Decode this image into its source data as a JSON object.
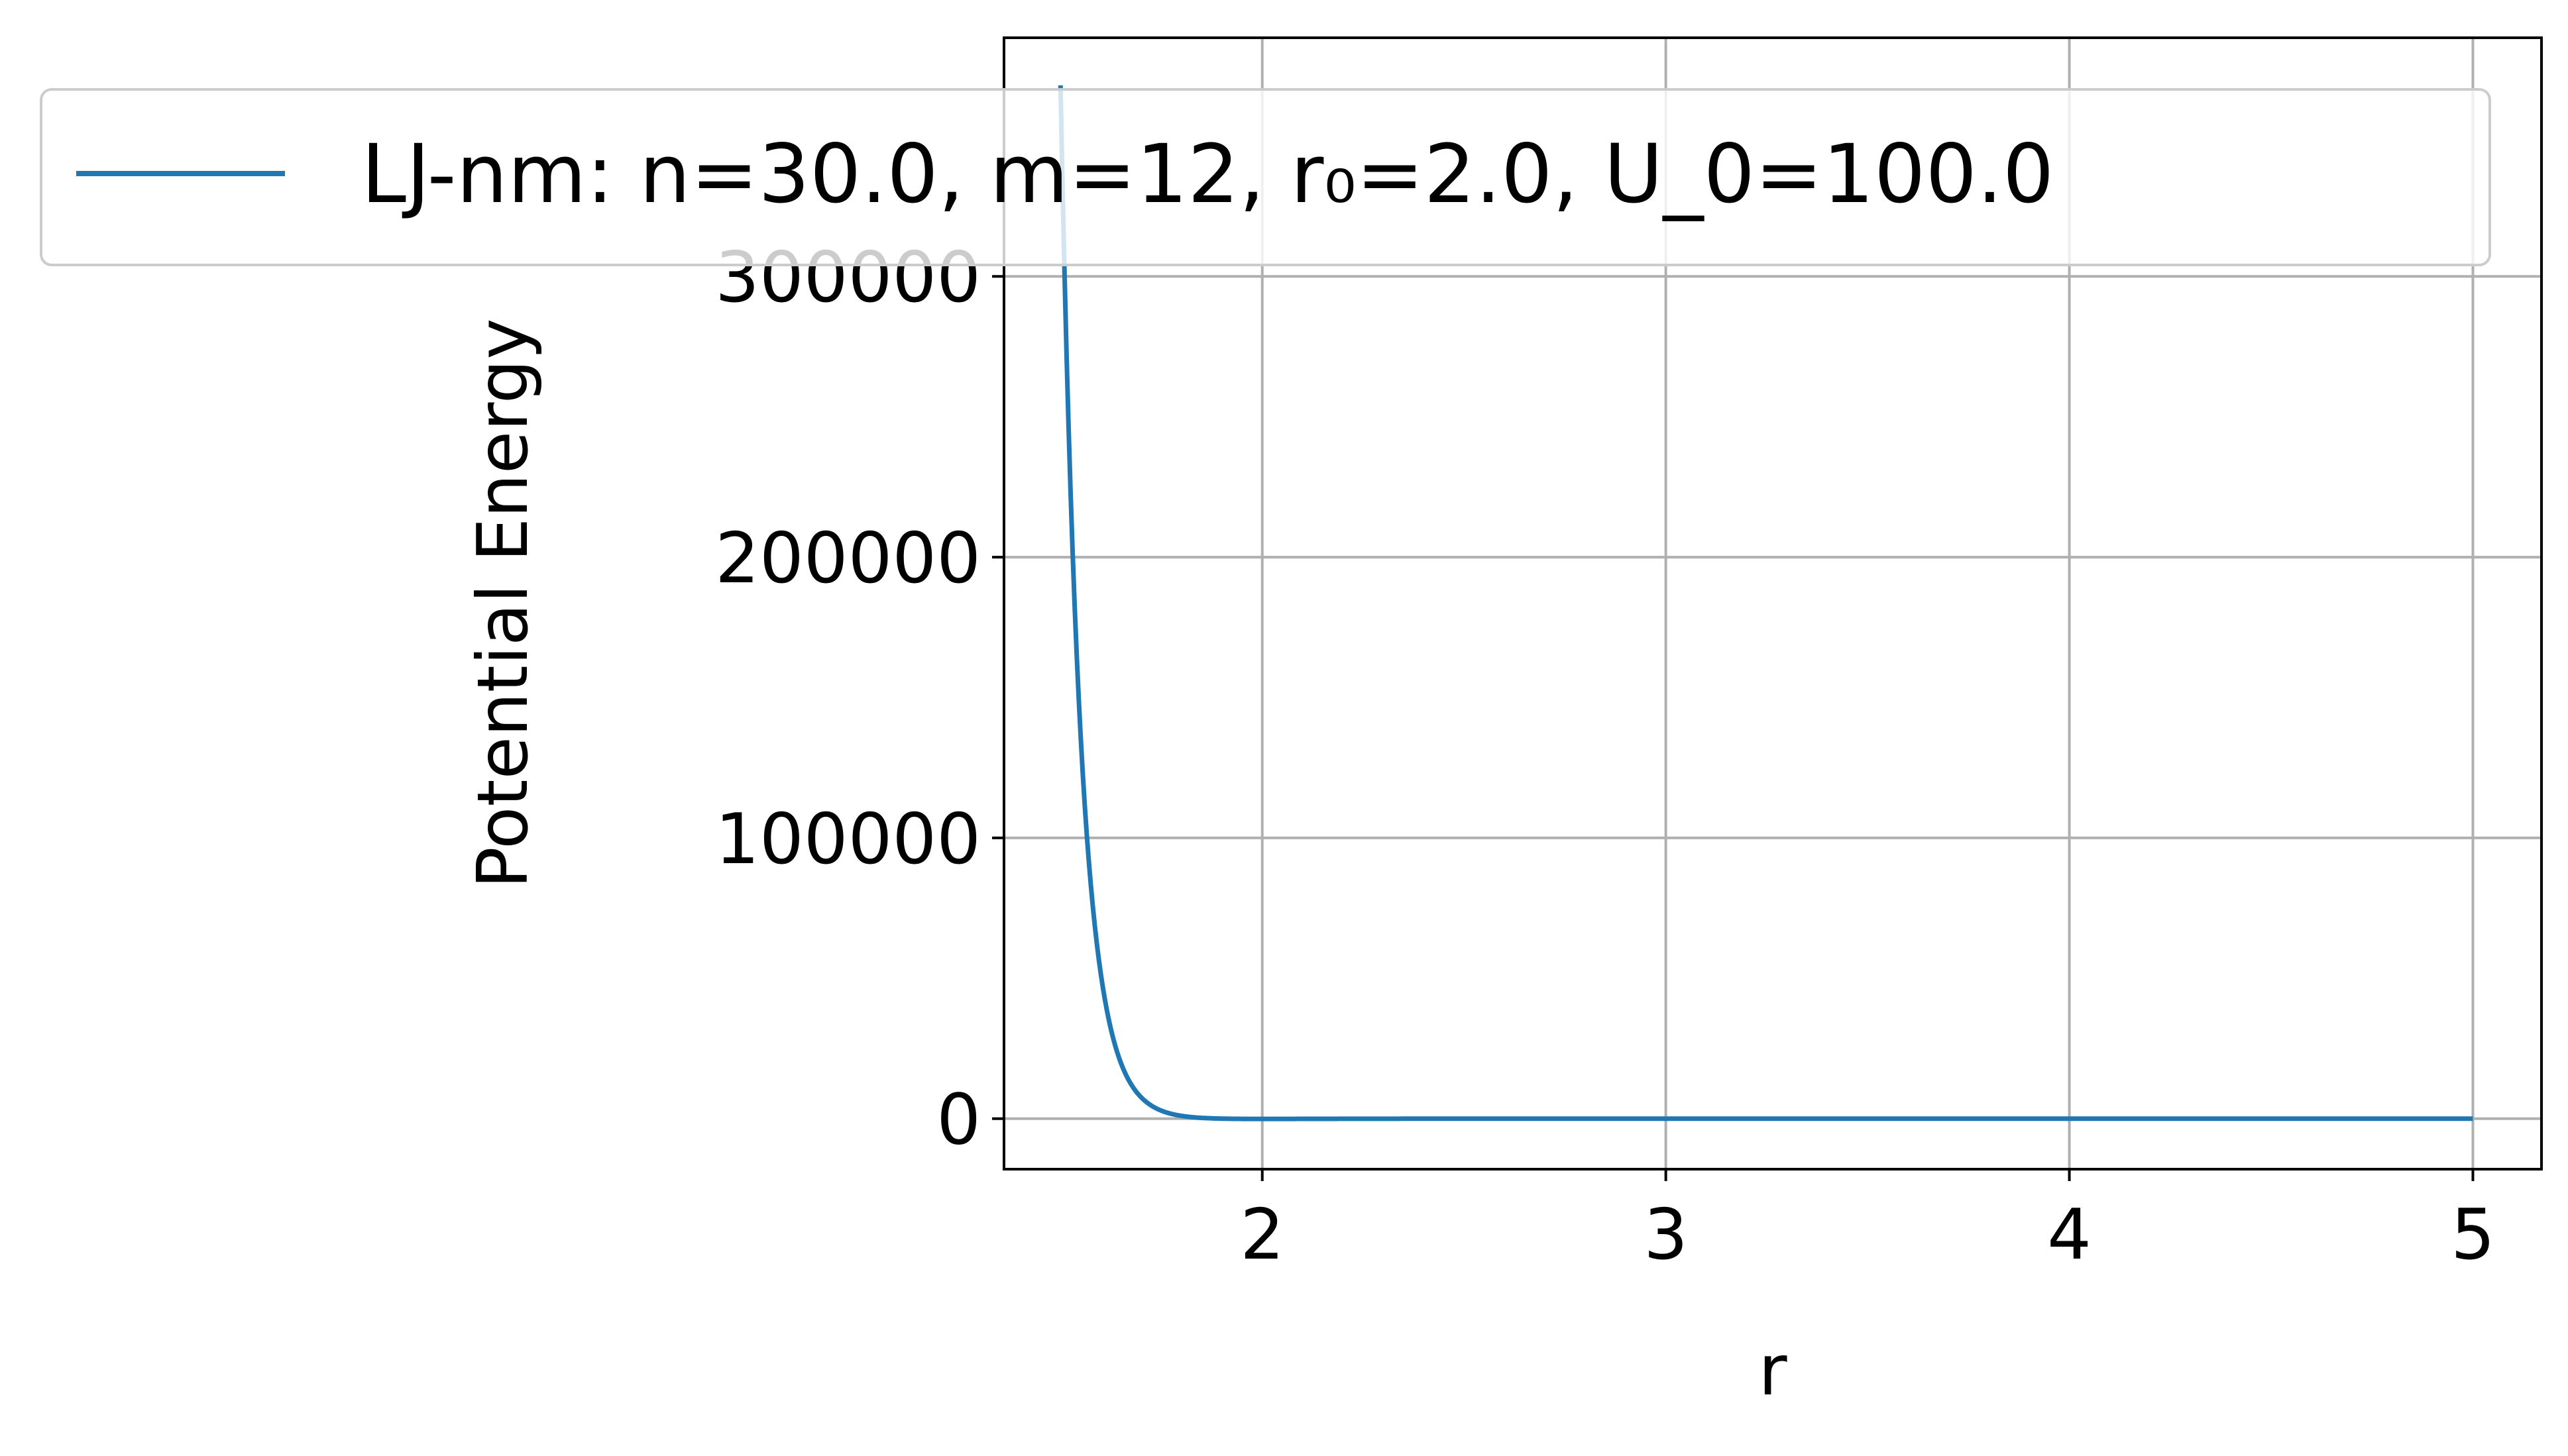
{
  "chart_data": {
    "type": "line",
    "title": "",
    "xlabel": "r",
    "ylabel": "Potential Energy",
    "xlim": [
      1.36,
      5.17
    ],
    "ylim": [
      -18000,
      385000
    ],
    "xticks": [
      2,
      3,
      4,
      5
    ],
    "yticks": [
      0,
      100000,
      200000,
      300000
    ],
    "xtick_labels": [
      "2",
      "3",
      "4",
      "5"
    ],
    "ytick_labels": [
      "0",
      "100000",
      "200000",
      "300000"
    ],
    "grid": true,
    "legend_placement": "top",
    "series": [
      {
        "name": "LJ-nm: n=30.0, m=12, r₀=2.0, U_0=100.0",
        "color": "#1f77b4",
        "formula": "lj-nm",
        "params": {
          "n": 30.0,
          "m": 12,
          "r0": 2.0,
          "U0": 100.0
        },
        "x_range": [
          1.5,
          5.0
        ]
      }
    ]
  }
}
